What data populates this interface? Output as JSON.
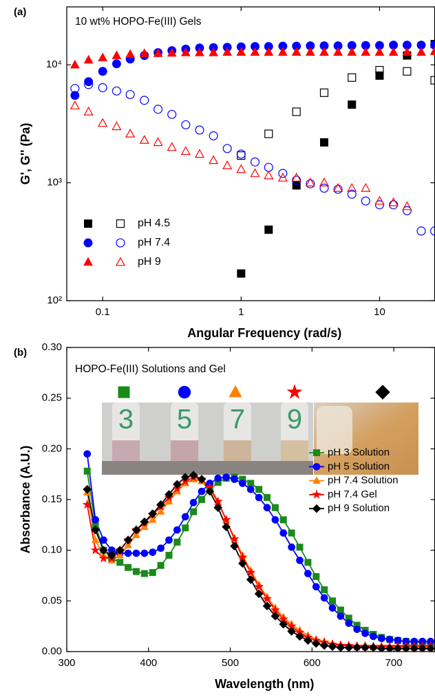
{
  "chart_data": [
    {
      "type": "scatter",
      "panel_label": "(a)",
      "annotation": "10 wt% HOPO-Fe(III) Gels",
      "x_label": "Angular Frequency (rad/s)",
      "y_label": "G', G'' (Pa)",
      "log_x": true,
      "log_y": true,
      "xlim": [
        0.055,
        25
      ],
      "ylim": [
        100,
        31000
      ],
      "xticks": [
        0.1,
        1,
        10
      ],
      "yticks": [
        {
          "value": 100,
          "label": "10²"
        },
        {
          "value": 1000,
          "label": "10³"
        },
        {
          "value": 10000,
          "label": "10⁴"
        }
      ],
      "x": [
        0.063,
        0.079,
        0.1,
        0.126,
        0.158,
        0.2,
        0.251,
        0.316,
        0.398,
        0.501,
        0.631,
        0.794,
        1,
        1.26,
        1.58,
        2,
        2.51,
        3.16,
        3.98,
        5.01,
        6.31,
        7.94,
        10,
        12.6,
        15.8,
        20,
        25
      ],
      "series": [
        {
          "name": "pH 4.5",
          "color": "#000000",
          "marker": "square",
          "storage_values": [
            null,
            null,
            null,
            null,
            null,
            null,
            null,
            null,
            null,
            null,
            null,
            null,
            170,
            null,
            400,
            null,
            950,
            null,
            2200,
            null,
            4600,
            null,
            8100,
            null,
            12000,
            null,
            15000
          ],
          "loss_values": [
            null,
            null,
            null,
            null,
            null,
            null,
            null,
            null,
            null,
            null,
            null,
            null,
            1700,
            null,
            2600,
            null,
            4000,
            null,
            5800,
            null,
            7800,
            null,
            9000,
            null,
            8800,
            null,
            7400
          ]
        },
        {
          "name": "pH 7.4",
          "color": "#0000ff",
          "marker": "circle",
          "storage_values": [
            5500,
            7200,
            8800,
            10200,
            11200,
            12000,
            12700,
            13200,
            13600,
            13900,
            14000,
            14100,
            14200,
            14300,
            14300,
            14400,
            14400,
            14500,
            14500,
            14500,
            14600,
            14600,
            14600,
            14700,
            14700,
            14700,
            14700
          ],
          "loss_values": [
            6300,
            6800,
            6400,
            6000,
            5600,
            5000,
            4200,
            3800,
            3100,
            2800,
            2500,
            1950,
            1750,
            1500,
            1350,
            1200,
            1050,
            980,
            900,
            880,
            800,
            700,
            650,
            650,
            580,
            390,
            390
          ]
        },
        {
          "name": "pH 9",
          "color": "#ff0000",
          "marker": "triangle",
          "storage_values": [
            10000,
            11000,
            11500,
            12000,
            12300,
            12500,
            12500,
            12600,
            12700,
            12700,
            12700,
            12800,
            12800,
            12800,
            12800,
            12800,
            12800,
            12800,
            12800,
            12800,
            12800,
            12800,
            12800,
            12800,
            12800,
            12800,
            13000
          ],
          "loss_values": [
            4500,
            4000,
            3200,
            3000,
            2600,
            2300,
            2200,
            2000,
            1850,
            1750,
            1550,
            1400,
            1300,
            1200,
            1150,
            1100,
            1100,
            1000,
            1000,
            900,
            900,
            900,
            700,
            680,
            630,
            null,
            null
          ]
        }
      ]
    },
    {
      "type": "line",
      "panel_label": "(b)",
      "annotation": "HOPO-Fe(III) Solutions and Gel",
      "photo_labels": [
        "3",
        "5",
        "7",
        "9"
      ],
      "x_label": "Wavelength (nm)",
      "y_label": "Absorbance (A.U.)",
      "xlim": [
        300,
        750
      ],
      "ylim": [
        0,
        0.3
      ],
      "xticks": [
        300,
        400,
        500,
        600,
        700
      ],
      "yticks": [
        {
          "value": 0,
          "label": "0.00"
        },
        0.05,
        {
          "value": 0.1,
          "label": "0.10"
        },
        0.15,
        {
          "value": 0.2,
          "label": "0.20"
        },
        0.25,
        {
          "value": 0.3,
          "label": "0.30"
        }
      ],
      "x": [
        325,
        335,
        345,
        355,
        365,
        375,
        385,
        395,
        405,
        415,
        425,
        435,
        445,
        455,
        465,
        475,
        485,
        495,
        505,
        515,
        525,
        535,
        545,
        555,
        565,
        575,
        585,
        595,
        605,
        615,
        625,
        635,
        645,
        655,
        665,
        675,
        685,
        695,
        705,
        715,
        725,
        735,
        745
      ],
      "series": [
        {
          "name": "pH 3 Solution",
          "color": "#1a8a1a",
          "marker": "square",
          "values": [
            0.178,
            0.125,
            0.1,
            0.092,
            0.088,
            0.083,
            0.079,
            0.077,
            0.078,
            0.085,
            0.095,
            0.108,
            0.122,
            0.138,
            0.15,
            0.16,
            0.167,
            0.171,
            0.172,
            0.17,
            0.166,
            0.16,
            0.152,
            0.142,
            0.13,
            0.117,
            0.103,
            0.088,
            0.074,
            0.061,
            0.05,
            0.041,
            0.033,
            0.026,
            0.021,
            0.017,
            0.014,
            0.012,
            0.011,
            0.01,
            0.009,
            0.009,
            0.008
          ]
        },
        {
          "name": "pH 5 Solution",
          "color": "#0000ff",
          "marker": "circle",
          "values": [
            0.195,
            0.13,
            0.11,
            0.1,
            0.097,
            0.097,
            0.097,
            0.097,
            0.098,
            0.102,
            0.11,
            0.12,
            0.133,
            0.147,
            0.158,
            0.166,
            0.171,
            0.172,
            0.17,
            0.166,
            0.16,
            0.152,
            0.142,
            0.13,
            0.117,
            0.103,
            0.09,
            0.077,
            0.064,
            0.053,
            0.043,
            0.035,
            0.028,
            0.022,
            0.018,
            0.015,
            0.013,
            0.012,
            0.011,
            0.01,
            0.01,
            0.01,
            0.01
          ]
        },
        {
          "name": "pH 7.4 Solution",
          "color": "#ff8000",
          "marker": "triangle",
          "values": [
            0.157,
            0.11,
            0.095,
            0.09,
            0.095,
            0.105,
            0.115,
            0.123,
            0.13,
            0.138,
            0.148,
            0.158,
            0.166,
            0.17,
            0.168,
            0.16,
            0.147,
            0.13,
            0.112,
            0.095,
            0.08,
            0.066,
            0.054,
            0.043,
            0.034,
            0.027,
            0.021,
            0.016,
            0.012,
            0.01,
            0.008,
            0.007,
            0.006,
            0.006,
            0.006,
            0.005,
            0.005,
            0.005,
            0.005,
            0.005,
            0.005,
            0.005,
            0.005
          ]
        },
        {
          "name": "pH 7.4 Gel",
          "color": "#ff0000",
          "marker": "star",
          "values": [
            0.145,
            0.1,
            0.092,
            0.092,
            0.1,
            0.11,
            0.12,
            0.127,
            0.135,
            0.143,
            0.152,
            0.161,
            0.168,
            0.172,
            0.17,
            0.162,
            0.148,
            0.13,
            0.111,
            0.093,
            0.078,
            0.064,
            0.052,
            0.041,
            0.032,
            0.025,
            0.019,
            0.014,
            0.011,
            0.009,
            0.007,
            0.006,
            0.006,
            0.005,
            0.005,
            0.005,
            0.005,
            0.005,
            0.005,
            0.005,
            0.005,
            0.005,
            0.005
          ]
        },
        {
          "name": "pH 9 Solution",
          "color": "#000000",
          "marker": "diamond",
          "values": [
            0.16,
            0.12,
            0.1,
            0.095,
            0.1,
            0.11,
            0.12,
            0.128,
            0.136,
            0.145,
            0.155,
            0.165,
            0.172,
            0.174,
            0.17,
            0.158,
            0.142,
            0.123,
            0.104,
            0.087,
            0.071,
            0.057,
            0.045,
            0.035,
            0.027,
            0.02,
            0.015,
            0.011,
            0.008,
            0.006,
            0.005,
            0.004,
            0.004,
            0.004,
            0.004,
            0.004,
            0.003,
            0.003,
            0.003,
            0.003,
            0.003,
            0.003,
            0.003
          ]
        }
      ]
    }
  ]
}
